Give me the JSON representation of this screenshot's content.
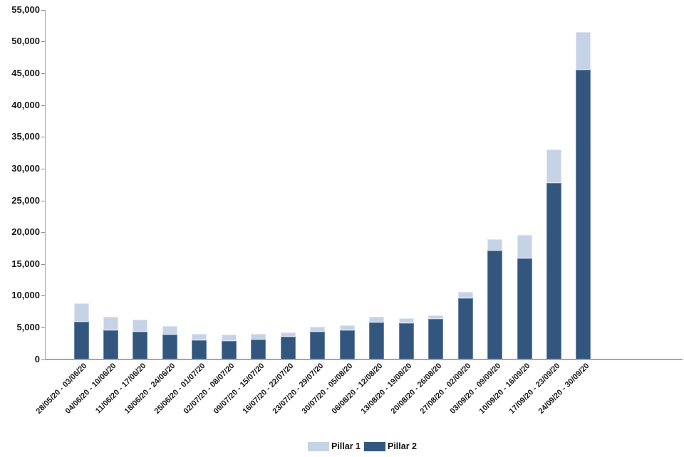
{
  "chart_data": {
    "type": "bar",
    "stacked": true,
    "title": "",
    "xlabel": "",
    "ylabel": "",
    "categories": [
      "28/05/20 - 03/06/20",
      "04/06/20 - 10/06/20",
      "11/06/20 - 17/06/20",
      "18/06/20 - 24/06/20",
      "25/06/20 - 01/07/20",
      "02/07/20 - 08/07/20",
      "09/07/20 - 15/07/20",
      "16/07/20 - 22/07/20",
      "23/07/20 - 29/07/20",
      "30/07/20 - 05/08/20",
      "06/08/20 - 12/08/20",
      "13/08/20 - 19/08/20",
      "20/08/20 - 26/08/20",
      "27/08/20 - 02/09/20",
      "03/09/20 - 09/09/20",
      "10/09/20 - 16/09/20",
      "17/09/20 - 23/09/20",
      "24/09/20 - 30/09/20"
    ],
    "series": [
      {
        "name": "Pillar 1",
        "color": "#C6D3E7",
        "values": [
          2900,
          2100,
          1850,
          1350,
          1000,
          1000,
          950,
          700,
          800,
          800,
          850,
          800,
          650,
          950,
          1800,
          3650,
          5200,
          5900
        ]
      },
      {
        "name": "Pillar 2",
        "color": "#33567E",
        "values": [
          5900,
          4600,
          4350,
          3900,
          3000,
          2900,
          3100,
          3550,
          4300,
          4550,
          5800,
          5650,
          6300,
          9650,
          17100,
          15900,
          27800,
          45600
        ]
      }
    ],
    "stack_order_bottom_to_top": [
      "Pillar 2",
      "Pillar 1"
    ],
    "ylim": [
      0,
      55000
    ],
    "y_tick_step": 5000,
    "y_tick_labels": [
      "0",
      "5,000",
      "10,000",
      "15,000",
      "20,000",
      "25,000",
      "30,000",
      "35,000",
      "40,000",
      "45,000",
      "50,000",
      "55,000"
    ],
    "grid": false,
    "legend_position": "bottom-center",
    "axis_color": "#A6A6A6",
    "label_color": "#1A1A1A"
  },
  "legend": {
    "items": [
      {
        "label": "Pillar 1",
        "color": "#C6D3E7"
      },
      {
        "label": "Pillar 2",
        "color": "#33567E"
      }
    ]
  }
}
